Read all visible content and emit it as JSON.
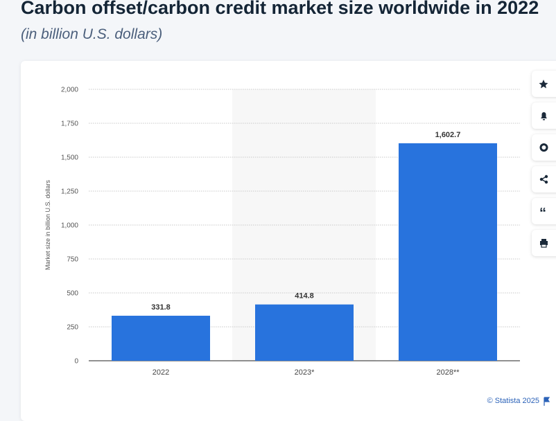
{
  "chart_data": {
    "type": "bar",
    "title": "Carbon offset/carbon credit market size worldwide in 2022",
    "subtitle": "(in billion U.S. dollars)",
    "y_label": "Market size in billion U.S. dollars",
    "source": "© Statista 2025",
    "categories": [
      "2022",
      "2023*",
      "2028**"
    ],
    "values": [
      331.8,
      414.8,
      1602.7
    ],
    "value_labels": [
      "331.8",
      "414.8",
      "1,602.7"
    ],
    "color": "#2873dd",
    "ylim": [
      0,
      2000
    ],
    "yticks": [
      0,
      250,
      500,
      750,
      {
        "value": 1000,
        "label": "1,000"
      },
      {
        "value": 1250,
        "label": "1,250"
      },
      {
        "value": 1500,
        "label": "1,500"
      },
      {
        "value": 1750,
        "label": "1,750"
      },
      {
        "value": 2000,
        "label": "2,000"
      }
    ],
    "grid": true
  }
}
